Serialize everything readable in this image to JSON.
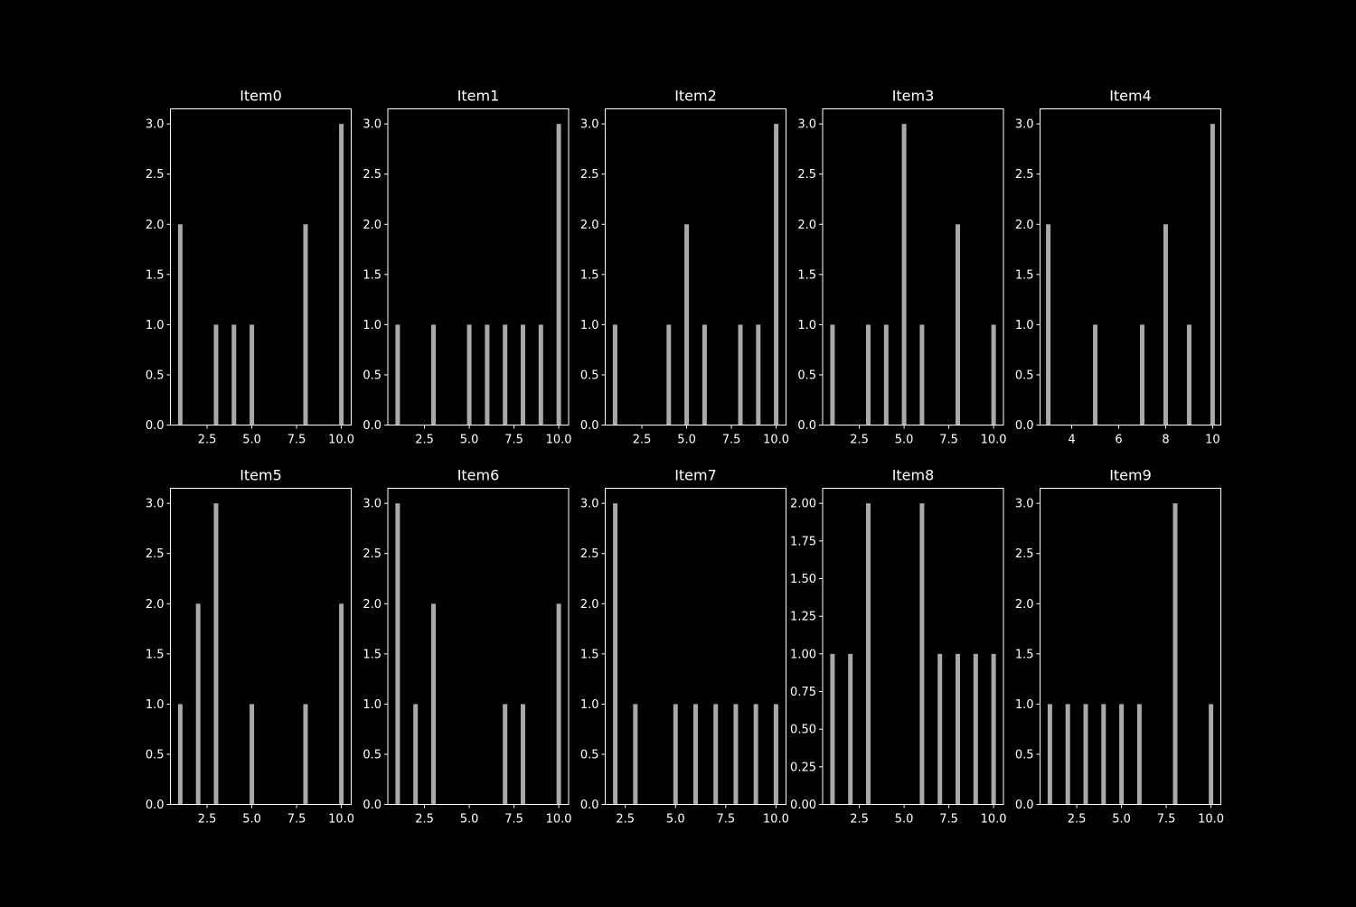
{
  "style": {
    "background": "#000000",
    "foreground": "#ffffff",
    "bar_color": "#a9a9a9"
  },
  "chart_data": [
    {
      "type": "bar",
      "title": "Item0",
      "xlabel": "",
      "ylabel": "",
      "x": [
        1,
        3,
        4,
        5,
        8,
        10
      ],
      "values": [
        2,
        1,
        1,
        1,
        2,
        3
      ],
      "xlim": [
        0.45,
        10.55
      ],
      "ylim": [
        0,
        3.15
      ],
      "xticks": [
        2.5,
        5.0,
        7.5,
        10.0
      ],
      "xtick_labels": [
        "2.5",
        "5.0",
        "7.5",
        "10.0"
      ],
      "yticks": [
        0,
        0.5,
        1.0,
        1.5,
        2.0,
        2.5,
        3.0
      ],
      "ytick_labels": [
        "0.0",
        "0.5",
        "1.0",
        "1.5",
        "2.0",
        "2.5",
        "3.0"
      ]
    },
    {
      "type": "bar",
      "title": "Item1",
      "xlabel": "",
      "ylabel": "",
      "x": [
        1,
        3,
        5,
        6,
        7,
        8,
        9,
        10
      ],
      "values": [
        1,
        1,
        1,
        1,
        1,
        1,
        1,
        3
      ],
      "xlim": [
        0.45,
        10.55
      ],
      "ylim": [
        0,
        3.15
      ],
      "xticks": [
        2.5,
        5.0,
        7.5,
        10.0
      ],
      "xtick_labels": [
        "2.5",
        "5.0",
        "7.5",
        "10.0"
      ],
      "yticks": [
        0,
        0.5,
        1.0,
        1.5,
        2.0,
        2.5,
        3.0
      ],
      "ytick_labels": [
        "0.0",
        "0.5",
        "1.0",
        "1.5",
        "2.0",
        "2.5",
        "3.0"
      ]
    },
    {
      "type": "bar",
      "title": "Item2",
      "xlabel": "",
      "ylabel": "",
      "x": [
        1,
        4,
        5,
        6,
        8,
        9,
        10
      ],
      "values": [
        1,
        1,
        2,
        1,
        1,
        1,
        3
      ],
      "xlim": [
        0.45,
        10.55
      ],
      "ylim": [
        0,
        3.15
      ],
      "xticks": [
        2.5,
        5.0,
        7.5,
        10.0
      ],
      "xtick_labels": [
        "2.5",
        "5.0",
        "7.5",
        "10.0"
      ],
      "yticks": [
        0,
        0.5,
        1.0,
        1.5,
        2.0,
        2.5,
        3.0
      ],
      "ytick_labels": [
        "0.0",
        "0.5",
        "1.0",
        "1.5",
        "2.0",
        "2.5",
        "3.0"
      ]
    },
    {
      "type": "bar",
      "title": "Item3",
      "xlabel": "",
      "ylabel": "",
      "x": [
        1,
        3,
        4,
        5,
        6,
        8,
        10
      ],
      "values": [
        1,
        1,
        1,
        3,
        1,
        2,
        1
      ],
      "xlim": [
        0.45,
        10.55
      ],
      "ylim": [
        0,
        3.15
      ],
      "xticks": [
        2.5,
        5.0,
        7.5,
        10.0
      ],
      "xtick_labels": [
        "2.5",
        "5.0",
        "7.5",
        "10.0"
      ],
      "yticks": [
        0,
        0.5,
        1.0,
        1.5,
        2.0,
        2.5,
        3.0
      ],
      "ytick_labels": [
        "0.0",
        "0.5",
        "1.0",
        "1.5",
        "2.0",
        "2.5",
        "3.0"
      ]
    },
    {
      "type": "bar",
      "title": "Item4",
      "xlabel": "",
      "ylabel": "",
      "x": [
        3,
        5,
        7,
        8,
        9,
        10
      ],
      "values": [
        2,
        1,
        1,
        2,
        1,
        3
      ],
      "xlim": [
        2.65,
        10.35
      ],
      "ylim": [
        0,
        3.15
      ],
      "xticks": [
        4,
        6,
        8,
        10
      ],
      "xtick_labels": [
        "4",
        "6",
        "8",
        "10"
      ],
      "yticks": [
        0,
        0.5,
        1.0,
        1.5,
        2.0,
        2.5,
        3.0
      ],
      "ytick_labels": [
        "0.0",
        "0.5",
        "1.0",
        "1.5",
        "2.0",
        "2.5",
        "3.0"
      ]
    },
    {
      "type": "bar",
      "title": "Item5",
      "xlabel": "",
      "ylabel": "",
      "x": [
        1,
        2,
        3,
        5,
        8,
        10
      ],
      "values": [
        1,
        2,
        3,
        1,
        1,
        2
      ],
      "xlim": [
        0.45,
        10.55
      ],
      "ylim": [
        0,
        3.15
      ],
      "xticks": [
        2.5,
        5.0,
        7.5,
        10.0
      ],
      "xtick_labels": [
        "2.5",
        "5.0",
        "7.5",
        "10.0"
      ],
      "yticks": [
        0,
        0.5,
        1.0,
        1.5,
        2.0,
        2.5,
        3.0
      ],
      "ytick_labels": [
        "0.0",
        "0.5",
        "1.0",
        "1.5",
        "2.0",
        "2.5",
        "3.0"
      ]
    },
    {
      "type": "bar",
      "title": "Item6",
      "xlabel": "",
      "ylabel": "",
      "x": [
        1,
        2,
        3,
        7,
        8,
        10
      ],
      "values": [
        3,
        1,
        2,
        1,
        1,
        2
      ],
      "xlim": [
        0.45,
        10.55
      ],
      "ylim": [
        0,
        3.15
      ],
      "xticks": [
        2.5,
        5.0,
        7.5,
        10.0
      ],
      "xtick_labels": [
        "2.5",
        "5.0",
        "7.5",
        "10.0"
      ],
      "yticks": [
        0,
        0.5,
        1.0,
        1.5,
        2.0,
        2.5,
        3.0
      ],
      "ytick_labels": [
        "0.0",
        "0.5",
        "1.0",
        "1.5",
        "2.0",
        "2.5",
        "3.0"
      ]
    },
    {
      "type": "bar",
      "title": "Item7",
      "xlabel": "",
      "ylabel": "",
      "x": [
        2,
        3,
        5,
        6,
        7,
        8,
        9,
        10
      ],
      "values": [
        3,
        1,
        1,
        1,
        1,
        1,
        1,
        1
      ],
      "xlim": [
        1.5,
        10.5
      ],
      "ylim": [
        0,
        3.15
      ],
      "xticks": [
        2.5,
        5.0,
        7.5,
        10.0
      ],
      "xtick_labels": [
        "2.5",
        "5.0",
        "7.5",
        "10.0"
      ],
      "yticks": [
        0,
        0.5,
        1.0,
        1.5,
        2.0,
        2.5,
        3.0
      ],
      "ytick_labels": [
        "0.0",
        "0.5",
        "1.0",
        "1.5",
        "2.0",
        "2.5",
        "3.0"
      ]
    },
    {
      "type": "bar",
      "title": "Item8",
      "xlabel": "",
      "ylabel": "",
      "x": [
        1,
        2,
        3,
        6,
        7,
        8,
        9,
        10
      ],
      "values": [
        1,
        1,
        2,
        2,
        1,
        1,
        1,
        1
      ],
      "xlim": [
        0.45,
        10.55
      ],
      "ylim": [
        0,
        2.1
      ],
      "xticks": [
        2.5,
        5.0,
        7.5,
        10.0
      ],
      "xtick_labels": [
        "2.5",
        "5.0",
        "7.5",
        "10.0"
      ],
      "yticks": [
        0,
        0.25,
        0.5,
        0.75,
        1.0,
        1.25,
        1.5,
        1.75,
        2.0
      ],
      "ytick_labels": [
        "0.00",
        "0.25",
        "0.50",
        "0.75",
        "1.00",
        "1.25",
        "1.50",
        "1.75",
        "2.00"
      ]
    },
    {
      "type": "bar",
      "title": "Item9",
      "xlabel": "",
      "ylabel": "",
      "x": [
        1,
        2,
        3,
        4,
        5,
        6,
        8,
        10
      ],
      "values": [
        1,
        1,
        1,
        1,
        1,
        1,
        3,
        1
      ],
      "xlim": [
        0.45,
        10.55
      ],
      "ylim": [
        0,
        3.15
      ],
      "xticks": [
        2.5,
        5.0,
        7.5,
        10.0
      ],
      "xtick_labels": [
        "2.5",
        "5.0",
        "7.5",
        "10.0"
      ],
      "yticks": [
        0,
        0.5,
        1.0,
        1.5,
        2.0,
        2.5,
        3.0
      ],
      "ytick_labels": [
        "0.0",
        "0.5",
        "1.0",
        "1.5",
        "2.0",
        "2.5",
        "3.0"
      ]
    }
  ]
}
